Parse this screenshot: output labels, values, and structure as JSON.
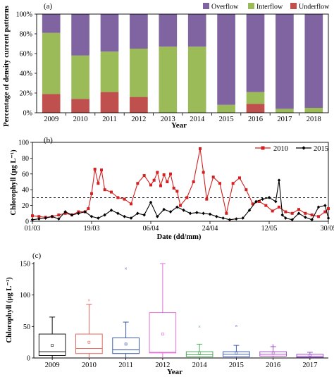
{
  "chart_data": [
    {
      "type": "bar",
      "panel_label": "(a)",
      "title": "",
      "xlabel": "Year",
      "ylabel": "Percentage of density current patterns",
      "ylim": [
        0,
        100
      ],
      "yticks": [
        "0%",
        "20%",
        "40%",
        "60%",
        "80%",
        "100%"
      ],
      "categories": [
        "2009",
        "2010",
        "2011",
        "2012",
        "2013",
        "2014",
        "2015",
        "2016",
        "2017",
        "2018"
      ],
      "series": [
        {
          "name": "Underflow",
          "color": "#c0504d",
          "values": [
            19,
            14,
            21,
            16,
            0,
            0,
            0,
            9,
            0,
            0
          ]
        },
        {
          "name": "Interflow",
          "color": "#9bbb59",
          "values": [
            62,
            44,
            41,
            49,
            67,
            67,
            8,
            12,
            4,
            5
          ]
        },
        {
          "name": "Overflow",
          "color": "#8064a2",
          "values": [
            19,
            42,
            38,
            35,
            33,
            33,
            92,
            79,
            96,
            95
          ]
        }
      ],
      "legend": "top-right"
    },
    {
      "type": "line",
      "panel_label": "(b)",
      "title": "",
      "xlabel": "Date (dd/mm)",
      "ylabel": "Chlorophyll (μg L⁻¹)",
      "ylim": [
        0,
        100
      ],
      "yticks": [
        "0",
        "20",
        "40",
        "60",
        "80",
        "100"
      ],
      "xticks": [
        "01/03",
        "19/03",
        "06/04",
        "24/04",
        "12/05",
        "30/05"
      ],
      "threshold": 30,
      "legend": "top-right",
      "series": [
        {
          "name": "2010",
          "color": "#d42020",
          "marker": "square",
          "x": [
            "01/03",
            "03/03",
            "05/03",
            "07/03",
            "09/03",
            "11/03",
            "13/03",
            "15/03",
            "17/03",
            "18/03",
            "19/03",
            "20/03",
            "21/03",
            "22/03",
            "23/03",
            "25/03",
            "27/03",
            "29/03",
            "31/03",
            "02/04",
            "04/04",
            "06/04",
            "07/04",
            "08/04",
            "09/04",
            "10/04",
            "11/04",
            "12/04",
            "13/04",
            "14/04",
            "15/04",
            "17/04",
            "19/04",
            "21/04",
            "22/04",
            "23/04",
            "25/04",
            "27/04",
            "29/04",
            "01/05",
            "03/05",
            "05/05",
            "07/05",
            "09/05",
            "11/05",
            "13/05",
            "15/05",
            "17/05",
            "19/05",
            "21/05",
            "23/05",
            "25/05",
            "27/05",
            "29/05",
            "30/05"
          ],
          "y": [
            7,
            6,
            5,
            6,
            8,
            10,
            8,
            12,
            12,
            16,
            35,
            66,
            48,
            65,
            40,
            37,
            30,
            28,
            22,
            48,
            58,
            46,
            52,
            62,
            45,
            59,
            50,
            60,
            42,
            38,
            20,
            30,
            50,
            92,
            62,
            28,
            56,
            48,
            10,
            48,
            55,
            40,
            22,
            25,
            20,
            13,
            18,
            12,
            10,
            15,
            10,
            8,
            6,
            12,
            16
          ]
        },
        {
          "name": "2015",
          "color": "#000000",
          "marker": "diamond",
          "x": [
            "01/03",
            "03/03",
            "05/03",
            "07/03",
            "09/03",
            "11/03",
            "13/03",
            "15/03",
            "17/03",
            "19/03",
            "21/03",
            "23/03",
            "25/03",
            "27/03",
            "29/03",
            "31/03",
            "02/04",
            "04/04",
            "06/04",
            "08/04",
            "10/04",
            "12/04",
            "14/04",
            "16/04",
            "18/04",
            "20/04",
            "22/04",
            "24/04",
            "26/04",
            "28/04",
            "30/04",
            "02/05",
            "04/05",
            "06/05",
            "08/05",
            "10/05",
            "12/05",
            "14/05",
            "15/05",
            "16/05",
            "17/05",
            "19/05",
            "21/05",
            "23/05",
            "25/05",
            "27/05",
            "29/05",
            "30/05"
          ],
          "y": [
            2,
            3,
            4,
            6,
            3,
            12,
            8,
            10,
            12,
            6,
            4,
            8,
            14,
            10,
            6,
            4,
            10,
            8,
            24,
            6,
            15,
            12,
            18,
            14,
            10,
            11,
            10,
            9,
            6,
            4,
            2,
            3,
            4,
            14,
            25,
            28,
            30,
            25,
            52,
            8,
            4,
            2,
            10,
            5,
            2,
            18,
            20,
            4
          ]
        }
      ]
    },
    {
      "type": "box",
      "panel_label": "(c)",
      "title": "",
      "xlabel": "Year",
      "ylabel": "Chlorophyll (μg L⁻¹)",
      "ylim": [
        0,
        150
      ],
      "yticks": [
        "0",
        "50",
        "100",
        "150"
      ],
      "categories": [
        "2009",
        "2010",
        "2011",
        "2012",
        "2014",
        "2015",
        "2016",
        "2017"
      ],
      "boxes": [
        {
          "year": "2009",
          "color": "#000000",
          "min": 0,
          "q1": 4,
          "median": 10,
          "q3": 38,
          "max": 65,
          "mean": 20,
          "outliers": []
        },
        {
          "year": "2010",
          "color": "#e4574f",
          "min": 0,
          "q1": 7,
          "median": 15,
          "q3": 38,
          "max": 85,
          "mean": 25,
          "outliers": [
            92
          ]
        },
        {
          "year": "2011",
          "color": "#2747a6",
          "min": 0,
          "q1": 7,
          "median": 13,
          "q3": 32,
          "max": 57,
          "mean": 22,
          "outliers": [
            142
          ]
        },
        {
          "year": "2012",
          "color": "#e060d6",
          "min": 0,
          "q1": 8,
          "median": 9,
          "q3": 72,
          "max": 150,
          "mean": 38,
          "outliers": []
        },
        {
          "year": "2014",
          "color": "#3da34a",
          "min": 0,
          "q1": 2,
          "median": 5,
          "q3": 10,
          "max": 22,
          "mean": 8,
          "outliers": [
            50
          ]
        },
        {
          "year": "2015",
          "color": "#2a4fb0",
          "min": 0,
          "q1": 2,
          "median": 6,
          "q3": 10,
          "max": 20,
          "mean": 8,
          "outliers": [
            51
          ]
        },
        {
          "year": "2016",
          "color": "#9d3fc2",
          "min": 0,
          "q1": 3,
          "median": 6,
          "q3": 10,
          "max": 18,
          "mean": 8,
          "outliers": [
            20
          ]
        },
        {
          "year": "2017",
          "color": "#8e44c4",
          "min": 0,
          "q1": 1,
          "median": 3,
          "q3": 6,
          "max": 9,
          "mean": 4,
          "outliers": []
        }
      ]
    }
  ]
}
